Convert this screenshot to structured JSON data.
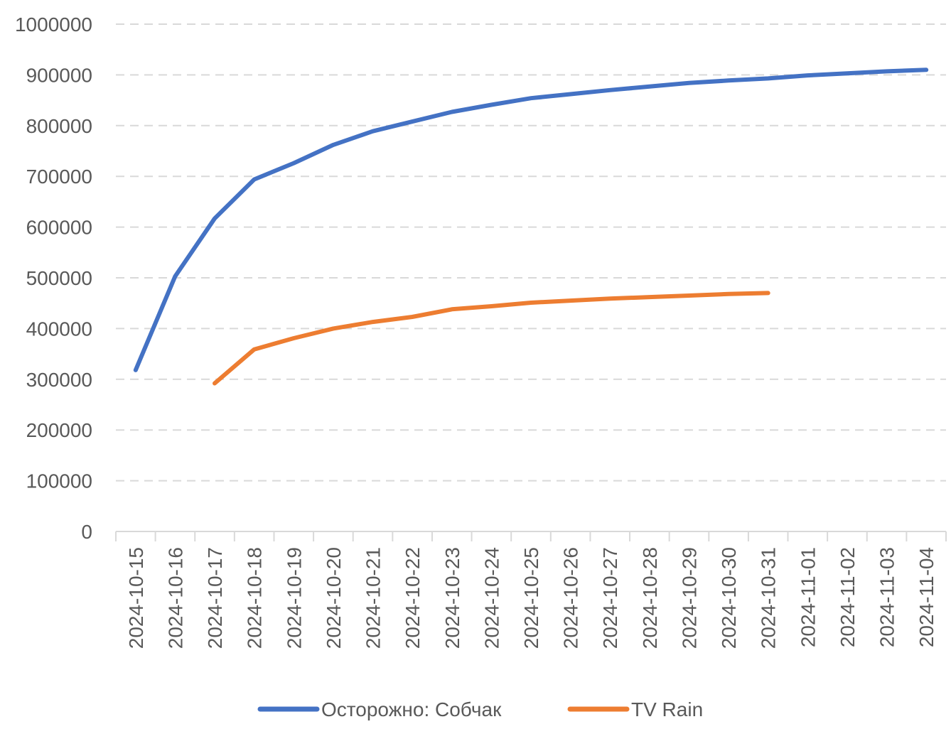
{
  "chart_data": {
    "type": "line",
    "title": "",
    "xlabel": "",
    "ylabel": "",
    "ylim": [
      0,
      1000000
    ],
    "y_ticks": [
      "0",
      "100000",
      "200000",
      "300000",
      "400000",
      "500000",
      "600000",
      "700000",
      "800000",
      "900000",
      "1000000"
    ],
    "categories": [
      "2024-10-15",
      "2024-10-16",
      "2024-10-17",
      "2024-10-18",
      "2024-10-19",
      "2024-10-20",
      "2024-10-21",
      "2024-10-22",
      "2024-10-23",
      "2024-10-24",
      "2024-10-25",
      "2024-10-26",
      "2024-10-27",
      "2024-10-28",
      "2024-10-29",
      "2024-10-30",
      "2024-10-31",
      "2024-11-01",
      "2024-11-02",
      "2024-11-03",
      "2024-11-04"
    ],
    "grid": true,
    "legend_position": "bottom",
    "series": [
      {
        "name": "Осторожно: Собчак",
        "color": "#4472c4",
        "values": [
          318000,
          503000,
          617000,
          694000,
          726000,
          762000,
          789000,
          808000,
          827000,
          841000,
          854000,
          862000,
          870000,
          877000,
          884000,
          889000,
          893000,
          899000,
          903000,
          907000,
          910000
        ]
      },
      {
        "name": "TV Rain",
        "color": "#ed7d31",
        "values": [
          null,
          null,
          292000,
          359000,
          381000,
          400000,
          413000,
          423000,
          438000,
          444000,
          451000,
          455000,
          459000,
          462000,
          465000,
          468000,
          470000,
          null,
          null,
          null,
          null
        ]
      }
    ]
  }
}
